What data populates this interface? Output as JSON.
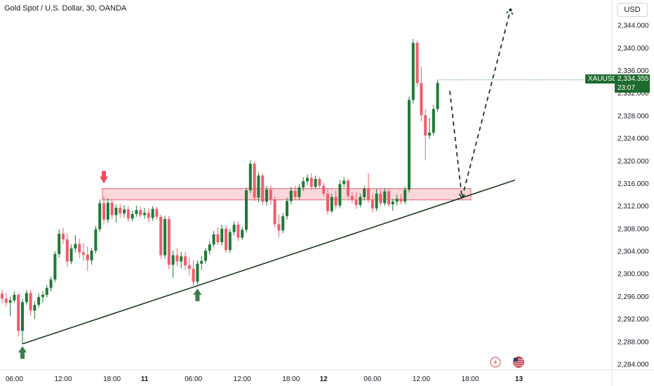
{
  "header": {
    "title": "Gold Spot / U.S. Dollar, 30, OANDA",
    "currency": "USD"
  },
  "last_price": {
    "symbol": "XAUUSD",
    "price": "2,334.355",
    "countdown": "23:07",
    "value": 2334.355,
    "color": "#1e6b2e"
  },
  "colors": {
    "up": "#1e7a35",
    "down": "#f25c6e",
    "zone_fill": "#f8c9cd",
    "zone_stroke": "#e06272",
    "trendline": "#1b3a1f",
    "projection": "#1b3a1f",
    "down_marker": "#ee4a5c",
    "up_marker": "#3f7d4c"
  },
  "chart_data": {
    "type": "candlestick",
    "title": "Gold Spot / U.S. Dollar, 30, OANDA",
    "x_unit": "30-minute bars",
    "ylim": [
      2283,
      2347
    ],
    "y_ticks": [
      "2,284.000",
      "2,288.000",
      "2,292.000",
      "2,296.000",
      "2,300.000",
      "2,304.000",
      "2,308.000",
      "2,312.000",
      "2,316.000",
      "2,320.000",
      "2,324.000",
      "2,328.000",
      "2,332.000",
      "2,336.000",
      "2,340.000",
      "2,344.000"
    ],
    "y_tick_values": [
      2284,
      2288,
      2292,
      2296,
      2300,
      2304,
      2308,
      2312,
      2316,
      2320,
      2324,
      2328,
      2332,
      2336,
      2340,
      2344
    ],
    "x_ticks": [
      {
        "label": "06:00",
        "bar": 3,
        "bold": false
      },
      {
        "label": "12:00",
        "bar": 15,
        "bold": false
      },
      {
        "label": "18:00",
        "bar": 27,
        "bold": false
      },
      {
        "label": "11",
        "bar": 35,
        "bold": true
      },
      {
        "label": "06:00",
        "bar": 47,
        "bold": false
      },
      {
        "label": "12:00",
        "bar": 59,
        "bold": false
      },
      {
        "label": "18:00",
        "bar": 71,
        "bold": false
      },
      {
        "label": "12",
        "bar": 79,
        "bold": true
      },
      {
        "label": "06:00",
        "bar": 91,
        "bold": false
      },
      {
        "label": "12:00",
        "bar": 103,
        "bold": false
      },
      {
        "label": "18:00",
        "bar": 115,
        "bold": false
      },
      {
        "label": "13",
        "bar": 127,
        "bold": true
      }
    ],
    "candles": [
      [
        2296.5,
        2297.2,
        2294.8,
        2295.6
      ],
      [
        2295.6,
        2296.6,
        2294.2,
        2294.9
      ],
      [
        2294.9,
        2296.0,
        2292.5,
        2295.3
      ],
      [
        2295.3,
        2296.9,
        2294.9,
        2296.3
      ],
      [
        2296.3,
        2296.6,
        2288.9,
        2289.9
      ],
      [
        2289.9,
        2295.6,
        2287.6,
        2295.0
      ],
      [
        2295.0,
        2297.2,
        2294.5,
        2296.6
      ],
      [
        2296.6,
        2297.2,
        2292.6,
        2293.5
      ],
      [
        2293.5,
        2295.1,
        2292.0,
        2294.5
      ],
      [
        2294.5,
        2296.6,
        2294.0,
        2295.9
      ],
      [
        2295.9,
        2296.9,
        2294.9,
        2296.3
      ],
      [
        2296.3,
        2298.0,
        2295.8,
        2297.5
      ],
      [
        2297.5,
        2299.5,
        2296.9,
        2299.0
      ],
      [
        2299.0,
        2304.0,
        2298.5,
        2303.5
      ],
      [
        2303.5,
        2307.9,
        2302.9,
        2307.1
      ],
      [
        2307.1,
        2308.2,
        2305.3,
        2306.1
      ],
      [
        2306.1,
        2307.2,
        2301.2,
        2302.2
      ],
      [
        2302.2,
        2305.2,
        2301.7,
        2304.5
      ],
      [
        2304.5,
        2306.9,
        2303.8,
        2305.3
      ],
      [
        2305.3,
        2306.2,
        2302.8,
        2303.8
      ],
      [
        2303.8,
        2305.4,
        2302.3,
        2303.4
      ],
      [
        2303.4,
        2304.9,
        2300.5,
        2302.4
      ],
      [
        2302.4,
        2304.6,
        2301.6,
        2304.1
      ],
      [
        2304.1,
        2308.5,
        2303.6,
        2307.9
      ],
      [
        2307.9,
        2313.2,
        2307.4,
        2312.5
      ],
      [
        2312.5,
        2313.7,
        2308.8,
        2309.6
      ],
      [
        2309.6,
        2313.4,
        2309.0,
        2312.6
      ],
      [
        2312.6,
        2313.3,
        2309.7,
        2310.4
      ],
      [
        2310.4,
        2312.3,
        2309.1,
        2311.7
      ],
      [
        2311.7,
        2312.4,
        2309.9,
        2310.7
      ],
      [
        2310.7,
        2312.2,
        2310.0,
        2311.4
      ],
      [
        2311.4,
        2312.0,
        2309.2,
        2309.8
      ],
      [
        2309.8,
        2311.2,
        2309.3,
        2310.6
      ],
      [
        2310.6,
        2312.1,
        2310.1,
        2311.3
      ],
      [
        2311.3,
        2311.9,
        2309.9,
        2310.4
      ],
      [
        2310.4,
        2311.7,
        2309.8,
        2310.8
      ],
      [
        2310.8,
        2311.6,
        2309.1,
        2309.9
      ],
      [
        2309.9,
        2312.0,
        2309.4,
        2311.5
      ],
      [
        2311.5,
        2311.9,
        2309.6,
        2310.1
      ],
      [
        2310.1,
        2310.5,
        2302.6,
        2303.3
      ],
      [
        2303.3,
        2310.3,
        2302.7,
        2309.7
      ],
      [
        2309.7,
        2310.3,
        2300.8,
        2301.6
      ],
      [
        2301.6,
        2304.1,
        2299.3,
        2303.3
      ],
      [
        2303.3,
        2304.5,
        2301.4,
        2302.2
      ],
      [
        2302.2,
        2303.9,
        2301.0,
        2303.1
      ],
      [
        2303.1,
        2303.9,
        2300.7,
        2301.5
      ],
      [
        2301.5,
        2302.9,
        2299.7,
        2300.9
      ],
      [
        2300.9,
        2302.4,
        2297.9,
        2298.6
      ],
      [
        2298.6,
        2302.4,
        2298.1,
        2301.8
      ],
      [
        2301.8,
        2303.2,
        2300.7,
        2302.3
      ],
      [
        2302.3,
        2304.6,
        2301.8,
        2304.1
      ],
      [
        2304.1,
        2305.8,
        2303.4,
        2305.2
      ],
      [
        2305.2,
        2307.6,
        2304.7,
        2307.0
      ],
      [
        2307.0,
        2308.2,
        2305.1,
        2305.6
      ],
      [
        2305.6,
        2308.7,
        2305.0,
        2308.0
      ],
      [
        2308.0,
        2308.6,
        2303.7,
        2304.2
      ],
      [
        2304.2,
        2308.0,
        2303.7,
        2307.4
      ],
      [
        2307.4,
        2309.3,
        2306.8,
        2308.7
      ],
      [
        2308.7,
        2309.2,
        2305.8,
        2306.4
      ],
      [
        2306.4,
        2308.3,
        2306.0,
        2307.8
      ],
      [
        2307.8,
        2315.3,
        2307.3,
        2314.8
      ],
      [
        2314.8,
        2320.1,
        2314.3,
        2319.5
      ],
      [
        2319.5,
        2319.9,
        2312.9,
        2313.5
      ],
      [
        2313.5,
        2318.0,
        2312.7,
        2317.4
      ],
      [
        2317.4,
        2317.8,
        2312.2,
        2312.8
      ],
      [
        2312.8,
        2315.6,
        2312.1,
        2314.9
      ],
      [
        2314.9,
        2315.7,
        2312.3,
        2313.2
      ],
      [
        2313.2,
        2313.7,
        2308.2,
        2308.8
      ],
      [
        2308.8,
        2310.5,
        2306.5,
        2307.7
      ],
      [
        2307.7,
        2310.8,
        2307.2,
        2310.2
      ],
      [
        2310.2,
        2313.5,
        2309.6,
        2312.9
      ],
      [
        2312.9,
        2315.4,
        2312.3,
        2314.7
      ],
      [
        2314.7,
        2315.6,
        2313.1,
        2313.6
      ],
      [
        2313.6,
        2315.9,
        2313.1,
        2315.3
      ],
      [
        2315.3,
        2317.1,
        2314.7,
        2316.4
      ],
      [
        2316.4,
        2317.6,
        2315.7,
        2317.0
      ],
      [
        2317.0,
        2317.8,
        2314.8,
        2315.4
      ],
      [
        2315.4,
        2317.4,
        2315.0,
        2316.8
      ],
      [
        2316.8,
        2317.2,
        2315.1,
        2315.6
      ],
      [
        2315.6,
        2316.1,
        2313.7,
        2314.2
      ],
      [
        2314.2,
        2315.0,
        2310.5,
        2311.1
      ],
      [
        2311.1,
        2314.2,
        2310.7,
        2313.6
      ],
      [
        2313.6,
        2314.7,
        2311.5,
        2312.1
      ],
      [
        2312.1,
        2316.6,
        2311.6,
        2315.9
      ],
      [
        2315.9,
        2317.1,
        2315.3,
        2316.5
      ],
      [
        2316.5,
        2316.9,
        2313.3,
        2313.8
      ],
      [
        2313.8,
        2314.5,
        2312.5,
        2313.1
      ],
      [
        2313.1,
        2314.4,
        2311.5,
        2312.2
      ],
      [
        2312.2,
        2314.2,
        2311.8,
        2313.6
      ],
      [
        2313.6,
        2315.6,
        2313.0,
        2315.1
      ],
      [
        2315.1,
        2317.8,
        2312.6,
        2313.1
      ],
      [
        2313.1,
        2314.0,
        2310.9,
        2311.6
      ],
      [
        2311.6,
        2315.0,
        2311.1,
        2314.2
      ],
      [
        2314.2,
        2314.9,
        2311.9,
        2312.5
      ],
      [
        2312.5,
        2315.2,
        2312.0,
        2314.6
      ],
      [
        2314.6,
        2315.1,
        2311.9,
        2312.3
      ],
      [
        2312.3,
        2313.3,
        2311.2,
        2312.8
      ],
      [
        2312.8,
        2314.0,
        2312.1,
        2313.3
      ],
      [
        2313.3,
        2314.2,
        2312.3,
        2312.8
      ],
      [
        2312.8,
        2315.4,
        2312.3,
        2314.9
      ],
      [
        2314.9,
        2331.4,
        2314.4,
        2330.8
      ],
      [
        2330.8,
        2341.6,
        2330.2,
        2340.9
      ],
      [
        2340.9,
        2341.3,
        2333.2,
        2333.8
      ],
      [
        2333.8,
        2336.7,
        2327.0,
        2328.1
      ],
      [
        2328.1,
        2329.2,
        2320.1,
        2324.5
      ],
      [
        2324.5,
        2327.6,
        2323.9,
        2325.0
      ],
      [
        2325.0,
        2329.9,
        2324.5,
        2329.2
      ],
      [
        2329.2,
        2334.4,
        2328.7,
        2333.8
      ]
    ],
    "resistance_zone": {
      "bar_start": 25,
      "bar_end": 115,
      "price_low": 2313.1,
      "price_high": 2315.1
    },
    "trendline": {
      "bar_start": 5,
      "price_start": 2287.6,
      "bar_end": 126,
      "price_end": 2316.6
    },
    "projection_path": [
      {
        "bar": 110,
        "price": 2332.4
      },
      {
        "bar": 113,
        "price": 2313.4
      },
      {
        "bar": 125,
        "price": 2347.0
      }
    ],
    "markers": [
      {
        "type": "down-arrow",
        "bar": 25,
        "price": 2316.0
      },
      {
        "type": "up-arrow",
        "bar": 5,
        "price": 2287.2
      },
      {
        "type": "up-arrow",
        "bar": 48,
        "price": 2297.4
      }
    ],
    "last_price": 2334.355
  }
}
